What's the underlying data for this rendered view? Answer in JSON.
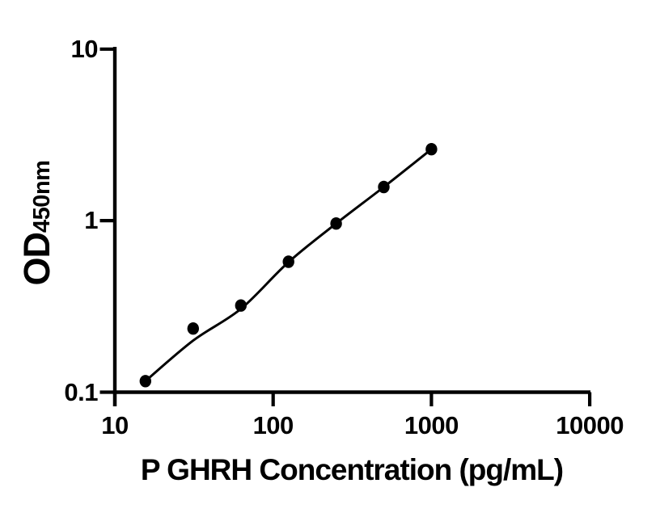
{
  "chart_data": {
    "type": "scatter",
    "title": "",
    "xlabel": "P GHRH Concentration (pg/mL)",
    "ylabel_main": "OD",
    "ylabel_sub": "450nm",
    "x_scale": "log",
    "y_scale": "log",
    "xlim": [
      10,
      10000
    ],
    "ylim": [
      0.1,
      10
    ],
    "x_ticks": [
      10,
      100,
      1000,
      10000
    ],
    "x_tick_labels": [
      "10",
      "100",
      "1000",
      "10000"
    ],
    "y_ticks": [
      0.1,
      1,
      10
    ],
    "y_tick_labels": [
      "0.1",
      "1",
      "10"
    ],
    "grid": false,
    "legend": null,
    "axis_color": "#000000",
    "marker_color": "#000000",
    "line_color": "#000000",
    "series": [
      {
        "name": "standard-curve-points",
        "x": [
          15.6,
          31.25,
          62.5,
          125,
          250,
          500,
          1000
        ],
        "y": [
          0.116,
          0.235,
          0.32,
          0.576,
          0.962,
          1.571,
          2.61
        ]
      }
    ],
    "fit_line": {
      "name": "fitted-curve",
      "x": [
        15.6,
        31.25,
        62.5,
        125,
        250,
        500,
        1000
      ],
      "y": [
        0.116,
        0.2,
        0.306,
        0.573,
        0.962,
        1.571,
        2.61
      ]
    }
  }
}
